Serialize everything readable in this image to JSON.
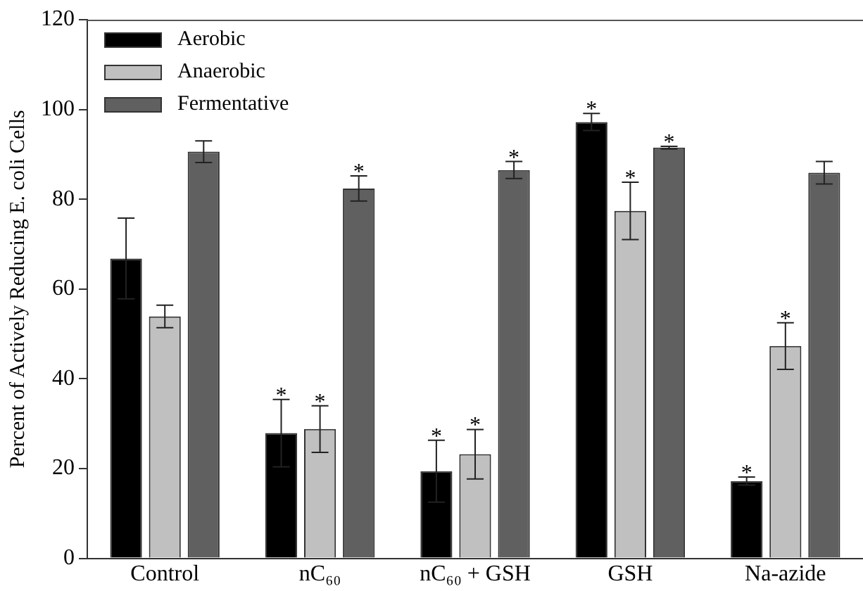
{
  "chart_data": {
    "type": "bar",
    "ylabel": "Percent of Actively Reducing E. coli Cells",
    "categories": [
      "Control",
      "nC₆₀",
      "nC₆₀ + GSH",
      "GSH",
      "Na-azide"
    ],
    "series": [
      {
        "name": "Aerobic",
        "color": "#000000",
        "values": [
          66.8,
          27.9,
          19.4,
          97.2,
          17.2
        ],
        "errors": [
          9,
          7.5,
          6.9,
          1.9,
          0.9
        ],
        "value_labels": [
          null,
          "*",
          "*",
          "*",
          "*"
        ]
      },
      {
        "name": "Anaerobic",
        "color": "#c0c0c0",
        "values": [
          53.9,
          28.8,
          23.2,
          77.4,
          47.3
        ],
        "errors": [
          2.5,
          5.2,
          5.5,
          6.4,
          5.2
        ],
        "value_labels": [
          null,
          "*",
          "*",
          "*",
          "*"
        ]
      },
      {
        "name": "Fermentative",
        "color": "#606060",
        "values": [
          90.6,
          82.4,
          86.5,
          91.5,
          85.9
        ],
        "errors": [
          2.4,
          2.8,
          1.9,
          0.3,
          2.5
        ],
        "value_labels": [
          null,
          "*",
          "*",
          "*",
          null
        ]
      }
    ],
    "ylim": [
      0,
      120
    ],
    "yticks": [
      0,
      20,
      40,
      60,
      80,
      100,
      120
    ],
    "grid": false,
    "legend": "top left"
  }
}
